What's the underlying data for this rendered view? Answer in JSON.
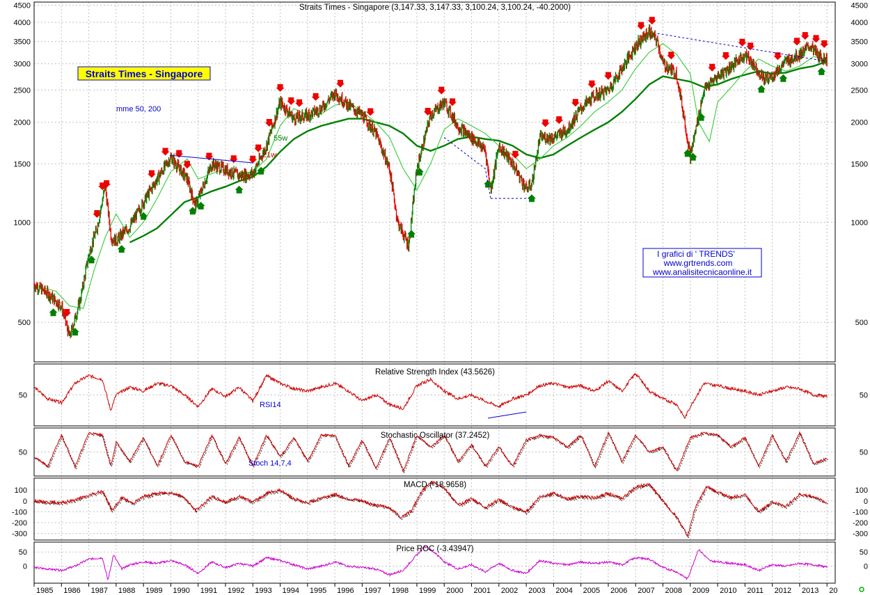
{
  "header": {
    "title": "Straits Times - Singapore (3,147.33, 3,147.33, 3,100.24, 3,100.24, -40.2000)",
    "badge": "Straits Times - Singapore",
    "mme_note": "mme 50, 200",
    "label_55w": "55w",
    "label_21w": "21w"
  },
  "credits": {
    "line1": "I grafici di ' TRENDS'",
    "line2": "www.grtrends.com",
    "line3": "www.analisitecnicaonline.it"
  },
  "colors": {
    "price_up": "#008000",
    "price_down": "#ee0000",
    "ema_fast": "#33cc33",
    "ema_slow": "#008000",
    "indicator": "#cc0000",
    "roc": "#cc00cc",
    "trendline": "#0000cc",
    "gridline": "#c0c0c0",
    "badge_bg": "#ffff00",
    "badge_text": "#0000cc"
  },
  "chart_data": [
    {
      "type": "line",
      "panel": "price",
      "scale": "log",
      "ylim": [
        380,
        4600
      ],
      "yticks": [
        500,
        1000,
        1500,
        2000,
        2500,
        3000,
        3500,
        4000,
        4500
      ],
      "xlim": [
        1985,
        2014.3
      ],
      "xticks": [
        "1985",
        "1986",
        "1987",
        "1988",
        "1989",
        "1990",
        "1991",
        "1992",
        "1993",
        "1994",
        "1995",
        "1996",
        "1997",
        "1998",
        "1999",
        "2000",
        "2001",
        "2002",
        "2003",
        "2004",
        "2005",
        "2006",
        "2007",
        "2008",
        "2009",
        "2010",
        "2011",
        "2012",
        "2013",
        "20"
      ],
      "series": [
        {
          "name": "",
          "x": [
            1985.0,
            1985.5,
            1986.0,
            1986.3,
            1986.7,
            1987.0,
            1987.3,
            1987.6,
            1987.82,
            1988.0,
            1988.5,
            1989.0,
            1989.5,
            1990.0,
            1990.6,
            1990.9,
            1991.5,
            1992.0,
            1992.5,
            1993.0,
            1993.5,
            1994.0,
            1994.5,
            1995.0,
            1995.5,
            1996.0,
            1996.5,
            1997.0,
            1997.5,
            1998.0,
            1998.3,
            1998.7,
            1999.0,
            1999.5,
            2000.0,
            2000.5,
            2001.0,
            2001.5,
            2001.7,
            2002.0,
            2002.5,
            2003.0,
            2003.2,
            2003.5,
            2004.0,
            2004.5,
            2005.0,
            2005.5,
            2006.0,
            2006.5,
            2007.0,
            2007.5,
            2007.8,
            2008.0,
            2008.5,
            2008.8,
            2009.0,
            2009.2,
            2009.5,
            2010.0,
            2010.5,
            2011.0,
            2011.3,
            2011.7,
            2012.0,
            2012.5,
            2013.0,
            2013.4,
            2013.7,
            2014.0
          ],
          "values": [
            650,
            610,
            560,
            450,
            590,
            800,
            960,
            1280,
            900,
            880,
            970,
            1150,
            1350,
            1570,
            1350,
            1120,
            1500,
            1440,
            1380,
            1400,
            1700,
            2300,
            2050,
            2100,
            2200,
            2450,
            2250,
            2100,
            1850,
            1450,
            1000,
            850,
            1450,
            2100,
            2300,
            1950,
            1800,
            1650,
            1250,
            1700,
            1500,
            1260,
            1300,
            1800,
            1800,
            1900,
            2200,
            2400,
            2500,
            2900,
            3400,
            3750,
            3500,
            3000,
            2800,
            2000,
            1580,
            1900,
            2500,
            2750,
            2950,
            3200,
            3000,
            2700,
            2750,
            3050,
            3200,
            3400,
            3150,
            3100
          ]
        },
        {
          "name": "21w",
          "x": [
            1985.2,
            1985.8,
            1986.3,
            1986.8,
            1987.2,
            1987.6,
            1988.0,
            1988.5,
            1989.0,
            1989.5,
            1990.0,
            1990.6,
            1991.0,
            1991.5,
            1992.0,
            1992.5,
            1993.0,
            1993.5,
            1994.0,
            1994.5,
            1995.0,
            1995.5,
            1996.0,
            1996.5,
            1997.0,
            1997.5,
            1998.0,
            1998.5,
            1999.0,
            1999.5,
            2000.0,
            2000.5,
            2001.0,
            2001.5,
            2002.0,
            2002.5,
            2003.0,
            2003.5,
            2004.0,
            2004.5,
            2005.0,
            2005.5,
            2006.0,
            2006.5,
            2007.0,
            2007.5,
            2008.0,
            2008.5,
            2009.0,
            2009.3,
            2009.7,
            2010.0,
            2010.5,
            2011.0,
            2011.5,
            2012.0,
            2012.5,
            2013.0,
            2013.5,
            2014.0
          ],
          "values": [
            640,
            620,
            560,
            550,
            720,
            900,
            1060,
            900,
            1000,
            1180,
            1420,
            1550,
            1350,
            1400,
            1450,
            1400,
            1420,
            1550,
            1950,
            2200,
            2100,
            2120,
            2250,
            2300,
            2150,
            2000,
            1800,
            1450,
            1250,
            1500,
            1900,
            2050,
            1950,
            1850,
            1700,
            1600,
            1450,
            1550,
            1700,
            1800,
            1950,
            2150,
            2300,
            2500,
            2900,
            3250,
            3450,
            3200,
            2800,
            2000,
            1750,
            2300,
            2550,
            2850,
            3100,
            2950,
            2850,
            2950,
            3150,
            3100
          ]
        },
        {
          "name": "55w",
          "x": [
            1988.5,
            1989.0,
            1989.5,
            1990.0,
            1990.5,
            1991.0,
            1991.5,
            1992.0,
            1992.5,
            1993.0,
            1993.5,
            1994.0,
            1994.5,
            1995.0,
            1995.5,
            1996.0,
            1996.5,
            1997.0,
            1997.5,
            1998.0,
            1998.5,
            1999.0,
            1999.5,
            2000.0,
            2000.5,
            2001.0,
            2001.5,
            2002.0,
            2002.5,
            2003.0,
            2003.5,
            2004.0,
            2004.5,
            2005.0,
            2005.5,
            2006.0,
            2006.5,
            2007.0,
            2007.5,
            2008.0,
            2008.5,
            2009.0,
            2009.5,
            2010.0,
            2010.5,
            2011.0,
            2011.5,
            2012.0,
            2012.5,
            2013.0,
            2013.5,
            2014.0
          ],
          "values": [
            870,
            910,
            960,
            1050,
            1150,
            1190,
            1240,
            1280,
            1330,
            1370,
            1470,
            1630,
            1780,
            1880,
            1950,
            2000,
            2050,
            2050,
            2000,
            1950,
            1850,
            1700,
            1640,
            1700,
            1780,
            1810,
            1780,
            1760,
            1700,
            1600,
            1560,
            1600,
            1700,
            1800,
            1900,
            2000,
            2150,
            2350,
            2600,
            2750,
            2700,
            2650,
            2550,
            2600,
            2700,
            2780,
            2850,
            2800,
            2820,
            2900,
            2950,
            3050
          ]
        },
        {
          "name": "",
          "x": [
            1990.0,
            1993.0
          ],
          "values": [
            1590,
            1510
          ]
        },
        {
          "name": "",
          "x": [
            2000.0,
            2001.5,
            2001.7,
            2003.1,
            2007.8,
            2014.0
          ],
          "values": [
            1800,
            1450,
            1180,
            1180,
            3700,
            3050
          ]
        }
      ]
    },
    {
      "type": "line",
      "panel": "rsi",
      "title": "Relative Strength Index (43.5626)",
      "label": "RSI14",
      "ylim": [
        10,
        90
      ],
      "yticks": [
        50
      ],
      "x": [
        1985.0,
        1985.5,
        1986.0,
        1986.5,
        1987.0,
        1987.5,
        1987.8,
        1988.0,
        1988.5,
        1989.0,
        1989.5,
        1990.0,
        1990.5,
        1991.0,
        1991.5,
        1992.0,
        1992.5,
        1993.0,
        1993.5,
        1994.0,
        1994.5,
        1995.0,
        1995.5,
        1996.0,
        1996.5,
        1997.0,
        1997.5,
        1998.0,
        1998.5,
        1999.0,
        1999.5,
        2000.0,
        2000.5,
        2001.0,
        2001.5,
        2002.0,
        2002.5,
        2003.0,
        2003.5,
        2004.0,
        2004.5,
        2005.0,
        2005.5,
        2006.0,
        2006.5,
        2007.0,
        2007.5,
        2008.0,
        2008.5,
        2008.8,
        2009.0,
        2009.5,
        2010.0,
        2010.5,
        2011.0,
        2011.5,
        2012.0,
        2012.5,
        2013.0,
        2013.5,
        2014.0
      ],
      "values": [
        60,
        45,
        40,
        65,
        75,
        70,
        30,
        50,
        60,
        55,
        65,
        62,
        50,
        35,
        58,
        48,
        60,
        42,
        75,
        65,
        58,
        55,
        60,
        65,
        55,
        42,
        50,
        38,
        32,
        62,
        70,
        55,
        45,
        50,
        42,
        35,
        45,
        50,
        62,
        65,
        60,
        62,
        55,
        68,
        55,
        78,
        55,
        45,
        38,
        20,
        35,
        65,
        62,
        58,
        55,
        50,
        55,
        60,
        58,
        50,
        48
      ]
    },
    {
      "type": "line",
      "panel": "stochastic",
      "title": "Stochastic Oscillator (37.2452)",
      "label": "Stoch 14,7,4",
      "ylim": [
        0,
        100
      ],
      "yticks": [
        50
      ],
      "x": [
        1985.0,
        1985.5,
        1986.0,
        1986.5,
        1987.0,
        1987.5,
        1987.8,
        1988.0,
        1988.5,
        1989.0,
        1989.5,
        1990.0,
        1990.5,
        1991.0,
        1991.5,
        1992.0,
        1992.5,
        1993.0,
        1993.5,
        1994.0,
        1994.5,
        1995.0,
        1995.5,
        1996.0,
        1996.5,
        1997.0,
        1997.5,
        1998.0,
        1998.5,
        1999.0,
        1999.5,
        2000.0,
        2000.5,
        2001.0,
        2001.5,
        2002.0,
        2002.5,
        2003.0,
        2003.5,
        2004.0,
        2004.5,
        2005.0,
        2005.5,
        2006.0,
        2006.5,
        2007.0,
        2007.5,
        2008.0,
        2008.5,
        2009.0,
        2009.5,
        2010.0,
        2010.5,
        2011.0,
        2011.5,
        2012.0,
        2012.5,
        2013.0,
        2013.5,
        2014.0
      ],
      "values": [
        40,
        20,
        85,
        20,
        90,
        85,
        20,
        70,
        30,
        80,
        20,
        85,
        30,
        20,
        85,
        25,
        80,
        20,
        85,
        40,
        80,
        30,
        85,
        85,
        20,
        75,
        15,
        80,
        10,
        85,
        60,
        85,
        30,
        65,
        20,
        60,
        20,
        75,
        85,
        80,
        60,
        85,
        20,
        90,
        30,
        85,
        50,
        60,
        10,
        80,
        90,
        85,
        60,
        80,
        20,
        85,
        30,
        90,
        25,
        37
      ]
    },
    {
      "type": "line",
      "panel": "macd",
      "title": "MACD (-18.9658)",
      "ylim": [
        -360,
        210
      ],
      "yticks": [
        100,
        0,
        -100,
        -200,
        -300
      ],
      "x": [
        1985.0,
        1985.5,
        1986.0,
        1986.5,
        1987.0,
        1987.5,
        1987.85,
        1988.2,
        1988.6,
        1989.0,
        1989.5,
        1990.0,
        1990.5,
        1990.9,
        1991.5,
        1992.0,
        1992.5,
        1993.0,
        1993.5,
        1994.0,
        1994.5,
        1995.0,
        1995.5,
        1996.0,
        1996.5,
        1997.0,
        1997.5,
        1998.0,
        1998.4,
        1998.8,
        1999.2,
        1999.6,
        2000.0,
        2000.5,
        2001.0,
        2001.5,
        2002.0,
        2002.5,
        2003.0,
        2003.5,
        2004.0,
        2004.5,
        2005.0,
        2005.5,
        2006.0,
        2006.5,
        2007.0,
        2007.5,
        2008.0,
        2008.5,
        2008.9,
        2009.2,
        2009.6,
        2010.0,
        2010.5,
        2011.0,
        2011.5,
        2012.0,
        2012.5,
        2013.0,
        2013.5,
        2014.0
      ],
      "values": [
        0,
        -10,
        -20,
        10,
        50,
        90,
        -90,
        30,
        -20,
        40,
        70,
        80,
        30,
        -90,
        40,
        -10,
        40,
        -10,
        70,
        100,
        20,
        -20,
        30,
        60,
        20,
        0,
        -40,
        -60,
        -150,
        -90,
        100,
        180,
        120,
        -40,
        20,
        -60,
        10,
        -60,
        -100,
        40,
        70,
        20,
        40,
        30,
        70,
        20,
        130,
        150,
        0,
        -150,
        -320,
        -50,
        130,
        80,
        30,
        60,
        -100,
        -10,
        -50,
        60,
        40,
        -19
      ]
    },
    {
      "type": "line",
      "panel": "roc",
      "title": "Price ROC (-3.43947)",
      "ylim": [
        -60,
        85
      ],
      "yticks": [
        50,
        0
      ],
      "x": [
        1985.0,
        1985.5,
        1986.0,
        1986.5,
        1987.0,
        1987.5,
        1987.7,
        1987.9,
        1988.2,
        1988.5,
        1989.0,
        1989.5,
        1990.0,
        1990.5,
        1991.0,
        1991.5,
        1992.0,
        1992.5,
        1993.0,
        1993.5,
        1994.0,
        1994.5,
        1995.0,
        1995.5,
        1996.0,
        1996.5,
        1997.0,
        1997.5,
        1998.0,
        1998.5,
        1998.9,
        1999.3,
        1999.7,
        2000.0,
        2000.5,
        2001.0,
        2001.5,
        2002.0,
        2002.5,
        2003.0,
        2003.5,
        2004.0,
        2004.5,
        2005.0,
        2005.5,
        2006.0,
        2006.5,
        2007.0,
        2007.5,
        2008.0,
        2008.5,
        2008.9,
        2009.3,
        2009.7,
        2010.0,
        2010.5,
        2011.0,
        2011.5,
        2012.0,
        2012.5,
        2013.0,
        2013.5,
        2014.0
      ],
      "values": [
        -5,
        -10,
        -15,
        0,
        25,
        30,
        -50,
        40,
        -10,
        5,
        15,
        10,
        20,
        5,
        -25,
        15,
        -5,
        10,
        0,
        30,
        20,
        5,
        -10,
        0,
        15,
        0,
        -5,
        -10,
        -30,
        -15,
        30,
        70,
        45,
        15,
        -10,
        5,
        -20,
        10,
        -15,
        -25,
        20,
        10,
        5,
        15,
        10,
        15,
        5,
        30,
        25,
        -5,
        -20,
        -45,
        60,
        20,
        15,
        10,
        5,
        -15,
        5,
        0,
        10,
        5,
        -3
      ]
    }
  ]
}
